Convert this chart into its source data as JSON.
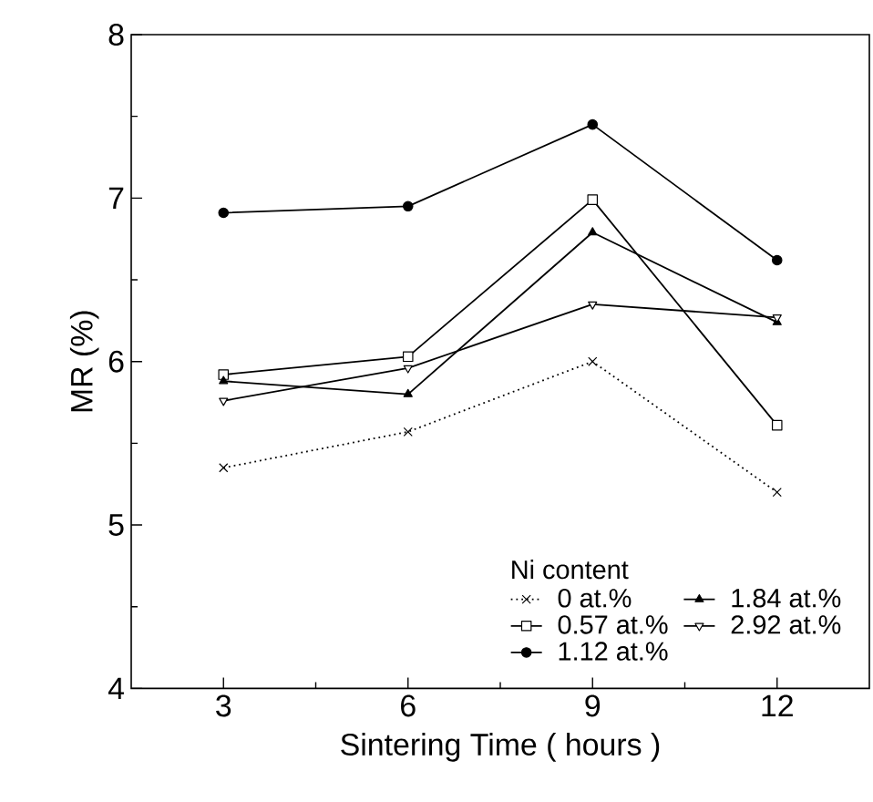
{
  "chart_data": {
    "type": "line",
    "xlabel": "Sintering Time ( hours )",
    "ylabel": "MR (%)",
    "legend_title": "Ni content",
    "legend": "bottom right",
    "x": [
      3,
      6,
      9,
      12
    ],
    "xlim": [
      1.5,
      13.5
    ],
    "xticks": [
      3,
      6,
      9,
      12
    ],
    "ylim": [
      4,
      8
    ],
    "yticks": [
      4,
      5,
      6,
      7,
      8
    ],
    "series": [
      {
        "name": "0 at.%",
        "color": "#000000",
        "marker": "cross",
        "line_style": "dotted",
        "values": [
          5.35,
          5.57,
          6.0,
          5.2
        ]
      },
      {
        "name": "0.57 at.%",
        "color": "#000000",
        "marker": "square",
        "line_style": "solid",
        "values": [
          5.92,
          6.03,
          6.99,
          5.61
        ]
      },
      {
        "name": "1.12 at.%",
        "color": "#000000",
        "marker": "circle",
        "line_style": "solid",
        "values": [
          6.91,
          6.95,
          7.45,
          6.62
        ]
      },
      {
        "name": "1.84 at.%",
        "color": "#000000",
        "marker": "triangle",
        "line_style": "solid",
        "values": [
          5.88,
          5.8,
          6.79,
          6.24
        ]
      },
      {
        "name": "2.92 at.%",
        "color": "#000000",
        "marker": "triangle-down",
        "line_style": "solid",
        "values": [
          5.76,
          5.96,
          6.35,
          6.27
        ]
      }
    ]
  }
}
